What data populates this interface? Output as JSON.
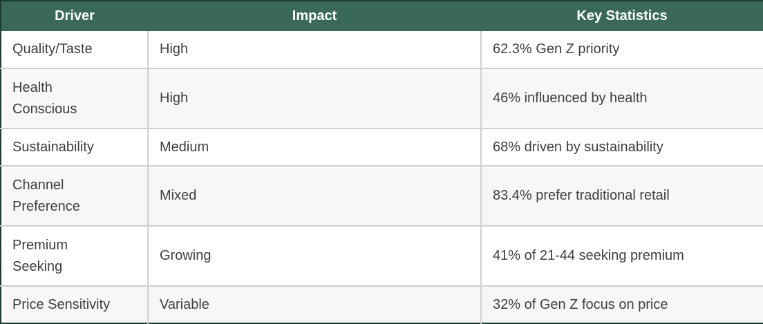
{
  "chart_data": {
    "type": "table",
    "columns": [
      "Driver",
      "Impact",
      "Key Statistics"
    ],
    "rows": [
      [
        "Quality/Taste",
        "High",
        "62.3% Gen Z priority"
      ],
      [
        "Health Conscious",
        "High",
        "46% influenced by health"
      ],
      [
        "Sustainability",
        "Medium",
        "68% driven by sustainability"
      ],
      [
        "Channel Preference",
        "Mixed",
        "83.4% prefer traditional retail"
      ],
      [
        "Premium Seeking",
        "Growing",
        "41% of 21-44 seeking premium"
      ],
      [
        "Price Sensitivity",
        "Variable",
        "32% of Gen Z focus on price"
      ]
    ],
    "layout": {
      "header_position": "top",
      "header_alignment": "center",
      "body_alignment": "left",
      "zebra_striping": true
    }
  },
  "header": {
    "driver": "Driver",
    "impact": "Impact",
    "stats": "Key Statistics"
  },
  "rows": [
    {
      "driver": "Quality/Taste",
      "impact": "High",
      "stats": "62.3% Gen Z priority"
    },
    {
      "driver": "Health\nConscious",
      "impact": "High",
      "stats": "46% influenced by health"
    },
    {
      "driver": "Sustainability",
      "impact": "Medium",
      "stats": "68% driven by sustainability"
    },
    {
      "driver": "Channel\nPreference",
      "impact": "Mixed",
      "stats": "83.4% prefer traditional retail"
    },
    {
      "driver": "Premium\nSeeking",
      "impact": "Growing",
      "stats": "41% of 21-44 seeking premium"
    },
    {
      "driver": "Price Sensitivity",
      "impact": "Variable",
      "stats": "32% of Gen Z focus on price"
    }
  ],
  "colors": {
    "header_bg": "#3A6A57",
    "header_text": "#FFFFFF",
    "outer_border": "#1C3A2E",
    "grid": "#CFCFCF",
    "row_bg": "#FFFFFF",
    "row_alt_bg": "#F7F7F8",
    "body_text": "#3C4043"
  }
}
